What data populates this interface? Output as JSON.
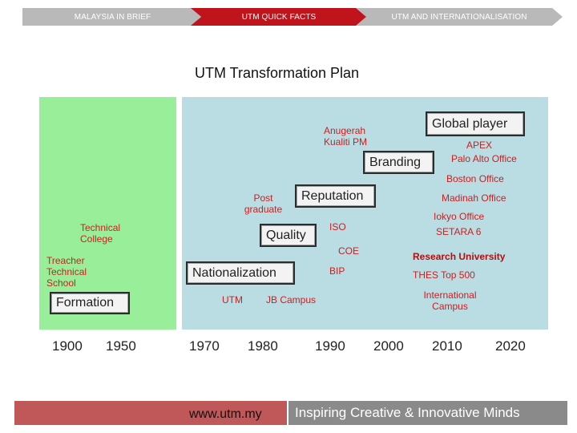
{
  "nav": {
    "tabs": [
      "MALAYSIA IN BRIEF",
      "UTM QUICK FACTS",
      "UTM AND INTERNATIONALISATION"
    ]
  },
  "title": "UTM Transformation Plan",
  "stages": [
    "Formation",
    "Nationalization",
    "Quality",
    "Reputation",
    "Branding",
    "Global player"
  ],
  "milestones": {
    "technical_college": "Technical College",
    "teacher_school": "Treacher Technical School",
    "utm": "UTM",
    "jb_campus": "JB Campus",
    "post_graduate": "Post graduate",
    "anugerah": "Anugerah Kualiti PM",
    "iso": "ISO",
    "coe": "COE",
    "bip": "BIP",
    "apex": "APEX",
    "palo_alto": "Palo Alto Office",
    "boston": "Boston Office",
    "madinah": "Madinah Office",
    "tokyo": "Iokyo Office",
    "setara": "SETARA 6",
    "research_university": "Research University",
    "thes": "THES Top 500",
    "international_campus": "International Campus"
  },
  "years": [
    "1900",
    "1950",
    "1970",
    "1980",
    "1990",
    "2000",
    "2010",
    "2020"
  ],
  "footer": {
    "url": "www.utm.my",
    "tagline": "Inspiring Creative & Innovative Minds"
  },
  "colors": {
    "accent": "#c0141c",
    "tab_inactive": "#b9b9b9",
    "panel_green": "#99ee99",
    "panel_blue": "#b9dde3",
    "label_red": "#cc1f1f"
  }
}
